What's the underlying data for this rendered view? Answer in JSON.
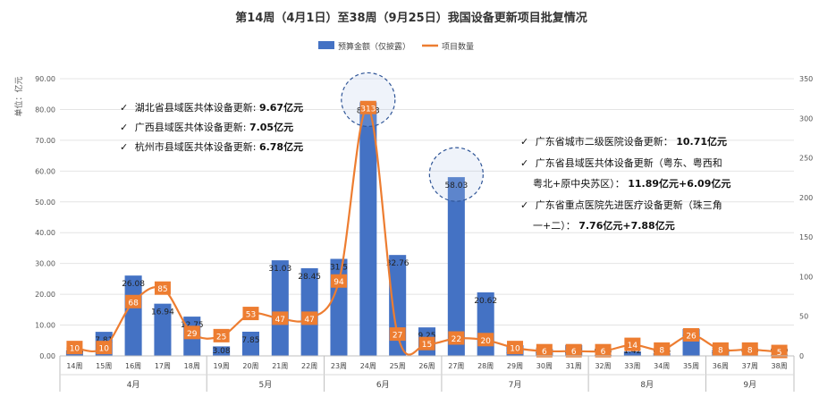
{
  "chart_data": {
    "type": "bar",
    "title": "第14周（4月1日）至38周（9月25日）我国设备更新项目批复情况",
    "y_unit_label": "单位：亿元",
    "categories": [
      "14周",
      "15周",
      "16周",
      "17周",
      "18周",
      "19周",
      "20周",
      "21周",
      "22周",
      "23周",
      "24周",
      "25周",
      "26周",
      "27周",
      "28周",
      "29周",
      "30周",
      "31周",
      "32周",
      "33周",
      "34周",
      "35周",
      "36周",
      "37周",
      "38周"
    ],
    "month_groups": [
      {
        "label": "4月",
        "start": 0,
        "end": 4
      },
      {
        "label": "5月",
        "start": 5,
        "end": 8
      },
      {
        "label": "6月",
        "start": 9,
        "end": 12
      },
      {
        "label": "7月",
        "start": 13,
        "end": 17
      },
      {
        "label": "8月",
        "start": 18,
        "end": 21
      },
      {
        "label": "9月",
        "start": 22,
        "end": 24
      }
    ],
    "series": [
      {
        "name": "预算金额（仅披露）",
        "type": "bar",
        "axis": "left",
        "color": "#4472C4",
        "values": [
          1.84,
          7.81,
          26.08,
          16.94,
          12.75,
          3.08,
          7.85,
          31.03,
          28.45,
          31.5,
          82.33,
          32.76,
          9.25,
          58.03,
          20.62,
          3.45,
          2.24,
          3.53,
          0.33,
          1.42,
          0.86,
          8.77,
          2.0,
          0.0,
          0.39
        ],
        "labels": [
          "1.84",
          "7.81",
          "26.08",
          "16.94",
          "12.75",
          "3.08",
          "7.85",
          "31.03",
          "28.45",
          "31.5",
          "82.33",
          "32.76",
          "9.25",
          "58.03",
          "20.62",
          "3.45",
          "2.24",
          "3.53",
          "0.33",
          "1.42",
          "0.86",
          "8.77",
          "2.00",
          "0.00",
          "0.39"
        ]
      },
      {
        "name": "项目数量",
        "type": "line",
        "axis": "right",
        "color": "#ED7D31",
        "values": [
          10,
          10,
          68,
          85,
          29,
          25,
          53,
          47,
          47,
          94,
          313,
          27,
          15,
          22,
          20,
          10,
          6,
          6,
          6,
          14,
          8,
          26,
          8,
          8,
          5
        ]
      }
    ],
    "y_left": {
      "min": 0,
      "max": 90,
      "step": 10,
      "ticks": [
        "0.00",
        "10.00",
        "20.00",
        "30.00",
        "40.00",
        "50.00",
        "60.00",
        "70.00",
        "80.00",
        "90.00"
      ]
    },
    "y_right": {
      "min": 0,
      "max": 350,
      "step": 50,
      "ticks": [
        "0",
        "50",
        "100",
        "150",
        "200",
        "250",
        "300",
        "350"
      ]
    },
    "legend_position": "top-center",
    "grid": true,
    "highlight_circles": [
      13,
      10
    ],
    "annotations": {
      "left_group": [
        {
          "text": "湖北省县域医共体设备更新:",
          "bold": "9.67亿元"
        },
        {
          "text": "广西县域医共体设备更新:",
          "bold": "7.05亿元"
        },
        {
          "text": "杭州市县域医共体设备更新:",
          "bold": "6.78亿元"
        }
      ],
      "right_group": [
        {
          "line1": "广东省城市二级医院设备更新：",
          "bold1": "10.71亿元"
        },
        {
          "line1": "广东省县域医共体设备更新（粤东、粤西和",
          "line2": "粤北+原中央苏区）：",
          "bold2": "11.89亿元+6.09亿元"
        },
        {
          "line1": "广东省重点医院先进医疗设备更新（珠三角",
          "line2": "一+二）：",
          "bold2": "7.76亿元+7.88亿元"
        }
      ],
      "check_mark": "✓"
    }
  }
}
